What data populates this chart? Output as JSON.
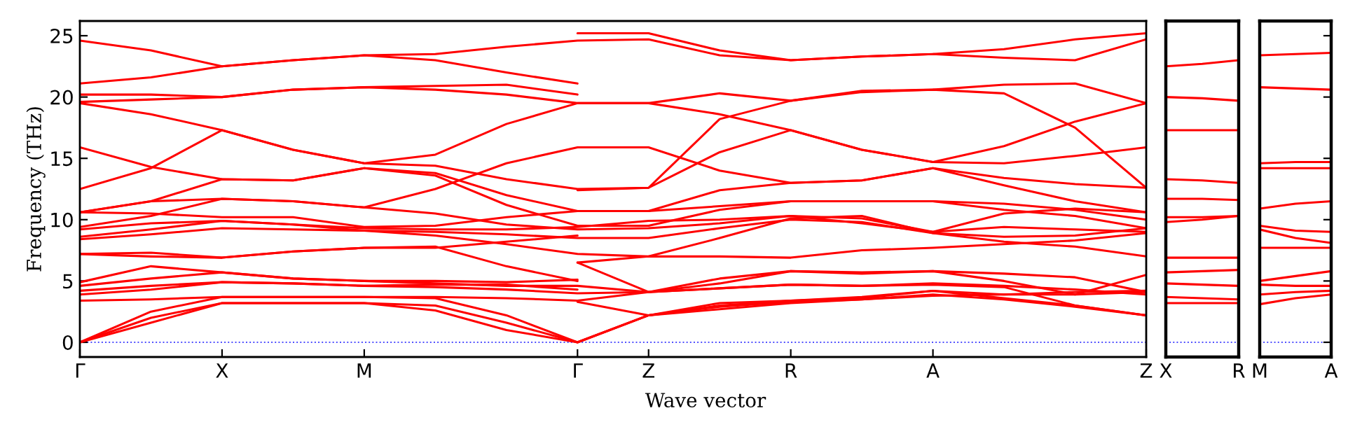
{
  "chart_data": [
    {
      "type": "line",
      "ylabel": "Frequency (THz)",
      "xlabel": "Wave vector",
      "ylim": [
        -1.2,
        26.2
      ],
      "yticks": [
        0,
        5,
        10,
        15,
        20,
        25
      ],
      "categories": [
        "Γ",
        null,
        "X",
        null,
        "M",
        null,
        null,
        "Γ",
        "Z",
        null,
        "R",
        null,
        "A",
        null,
        null,
        "Z"
      ],
      "grid": false,
      "legend": false,
      "line_style": "solid",
      "marker": "none",
      "ref_lines": [
        {
          "axis": "y",
          "value": 0,
          "color": "#0000ff",
          "line_style": "dotted"
        }
      ],
      "series": [
        {
          "color": "#ff0000",
          "values": [
            24.6,
            23.8,
            22.5,
            23.0,
            23.4,
            23.5,
            24.1,
            24.6,
            24.7,
            23.4,
            23.0,
            23.3,
            23.5,
            23.2,
            23.0,
            24.7
          ]
        },
        {
          "color": "#ff0000",
          "values": [
            21.1,
            21.6,
            22.5,
            23.0,
            23.4,
            23.0,
            22.0,
            21.1,
            null,
            null,
            null,
            null,
            null,
            null,
            null,
            null
          ]
        },
        {
          "color": "#ff0000",
          "values": [
            20.2,
            20.2,
            20.0,
            20.6,
            20.8,
            20.6,
            20.2,
            19.5,
            19.5,
            20.3,
            19.7,
            20.5,
            20.6,
            21.0,
            21.1,
            19.5
          ]
        },
        {
          "color": "#ff0000",
          "values": [
            19.6,
            19.8,
            20.0,
            20.6,
            20.8,
            20.9,
            21.0,
            20.2,
            null,
            null,
            null,
            null,
            null,
            null,
            null,
            null
          ]
        },
        {
          "color": "#ff0000",
          "values": [
            19.5,
            18.6,
            17.3,
            15.7,
            14.6,
            15.3,
            17.8,
            19.5,
            19.5,
            18.6,
            17.3,
            15.7,
            14.7,
            16.0,
            18.0,
            19.5
          ]
        },
        {
          "color": "#ff0000",
          "values": [
            12.5,
            14.2,
            17.3,
            15.7,
            14.6,
            14.4,
            13.3,
            12.5,
            12.6,
            18.2,
            19.7,
            20.4,
            20.6,
            20.3,
            17.5,
            12.6
          ]
        },
        {
          "color": "#ff0000",
          "values": [
            15.9,
            14.3,
            13.3,
            13.2,
            14.2,
            13.6,
            11.2,
            9.5,
            9.5,
            10.8,
            11.5,
            11.5,
            11.5,
            10.8,
            10.3,
            9.3
          ]
        },
        {
          "color": "#ff0000",
          "values": [
            10.6,
            11.5,
            13.3,
            13.2,
            14.2,
            13.8,
            12.0,
            10.7,
            10.7,
            12.4,
            13.0,
            13.2,
            14.2,
            12.8,
            11.5,
            10.6
          ]
        },
        {
          "color": "#ff0000",
          "values": [
            10.6,
            11.5,
            11.7,
            11.5,
            11.0,
            12.5,
            14.6,
            15.9,
            15.9,
            14.0,
            13.0,
            13.2,
            14.2,
            13.4,
            12.9,
            12.6
          ]
        },
        {
          "color": "#ff0000",
          "values": [
            9.4,
            10.3,
            11.7,
            11.5,
            11.0,
            10.5,
            9.6,
            9.2,
            9.3,
            9.7,
            10.3,
            10.1,
            9.0,
            9.4,
            9.2,
            9.0
          ]
        },
        {
          "color": "#ff0000",
          "values": [
            10.6,
            10.5,
            10.2,
            10.2,
            9.4,
            9.5,
            10.2,
            10.7,
            10.7,
            11.1,
            11.5,
            11.5,
            11.5,
            11.3,
            10.8,
            10.0
          ]
        },
        {
          "color": "#ff0000",
          "values": [
            9.2,
            9.7,
            9.9,
            9.6,
            9.3,
            9.2,
            9.2,
            9.4,
            9.9,
            10.0,
            10.3,
            9.7,
            9.0,
            10.5,
            10.9,
            10.6
          ]
        },
        {
          "color": "#ff0000",
          "values": [
            8.6,
            9.2,
            9.9,
            9.6,
            9.1,
            9.0,
            8.8,
            8.5,
            8.5,
            9.3,
            10.0,
            9.8,
            8.9,
            8.6,
            8.7,
            9.3
          ]
        },
        {
          "color": "#ff0000",
          "values": [
            8.4,
            8.8,
            9.3,
            9.2,
            9.1,
            8.7,
            8.0,
            7.2,
            7.0,
            7.0,
            6.9,
            7.5,
            7.7,
            8.0,
            8.3,
            8.9
          ]
        },
        {
          "color": "#ff0000",
          "values": [
            7.2,
            7.3,
            6.9,
            7.4,
            7.7,
            7.7,
            8.2,
            8.7,
            null,
            null,
            null,
            null,
            null,
            null,
            null,
            null
          ]
        },
        {
          "color": "#ff0000",
          "values": [
            7.2,
            7.0,
            6.9,
            7.4,
            7.7,
            7.8,
            6.2,
            5.0,
            null,
            null,
            null,
            null,
            null,
            null,
            null,
            null
          ]
        },
        {
          "color": "#ff0000",
          "values": [
            4.9,
            6.2,
            5.7,
            5.2,
            5.0,
            5.0,
            4.9,
            5.1,
            null,
            null,
            null,
            null,
            null,
            null,
            null,
            null
          ]
        },
        {
          "color": "#ff0000",
          "values": [
            4.6,
            5.2,
            5.7,
            5.2,
            5.0,
            4.8,
            4.6,
            4.6,
            4.1,
            4.8,
            5.8,
            5.7,
            5.8,
            5.0,
            3.9,
            4.1
          ]
        },
        {
          "color": "#ff0000",
          "values": [
            4.2,
            4.6,
            4.9,
            4.8,
            4.6,
            4.7,
            4.7,
            4.3,
            null,
            null,
            null,
            null,
            null,
            null,
            null,
            null
          ]
        },
        {
          "color": "#ff0000",
          "values": [
            3.9,
            4.3,
            4.9,
            4.8,
            4.6,
            4.5,
            4.3,
            4.0,
            4.1,
            4.4,
            4.7,
            4.6,
            4.7,
            4.5,
            3.0,
            2.2
          ]
        },
        {
          "color": "#ff0000",
          "values": [
            3.4,
            3.5,
            3.7,
            3.7,
            3.7,
            3.7,
            3.6,
            3.4,
            4.1,
            4.4,
            4.7,
            4.6,
            4.8,
            4.6,
            4.3,
            3.9
          ]
        },
        {
          "color": "#ff0000",
          "values": [
            0,
            2.5,
            3.7,
            3.7,
            3.7,
            3.6,
            2.2,
            0,
            2.2,
            3.0,
            3.4,
            3.6,
            4.2,
            3.6,
            3.0,
            2.2
          ]
        },
        {
          "color": "#ff0000",
          "values": [
            0,
            2.0,
            3.2,
            3.2,
            3.2,
            3.0,
            1.6,
            0,
            2.2,
            3.2,
            3.4,
            3.7,
            4.2,
            3.9,
            3.9,
            5.5
          ]
        },
        {
          "color": "#ff0000",
          "values": [
            0,
            1.6,
            3.2,
            3.2,
            3.2,
            2.6,
            1.0,
            0,
            2.2,
            2.7,
            3.2,
            3.5,
            3.8,
            3.9,
            4.1,
            4.2
          ]
        },
        {
          "color": "#ff0000",
          "values": [
            null,
            null,
            null,
            null,
            null,
            null,
            null,
            25.2,
            25.2,
            23.8,
            23.0,
            23.3,
            23.5,
            23.9,
            24.7,
            25.2
          ]
        },
        {
          "color": "#ff0000",
          "values": [
            null,
            null,
            null,
            null,
            null,
            null,
            null,
            12.4,
            12.6,
            15.5,
            17.3,
            15.7,
            14.7,
            14.6,
            15.2,
            15.9
          ]
        },
        {
          "color": "#ff0000",
          "values": [
            null,
            null,
            null,
            null,
            null,
            null,
            null,
            6.5,
            7.0,
            8.5,
            10.1,
            10.3,
            8.9,
            8.2,
            7.8,
            7.0
          ]
        },
        {
          "color": "#ff0000",
          "values": [
            null,
            null,
            null,
            null,
            null,
            null,
            null,
            6.5,
            4.1,
            5.2,
            5.8,
            5.6,
            5.8,
            5.6,
            5.3,
            4.1
          ]
        },
        {
          "color": "#ff0000",
          "values": [
            null,
            null,
            null,
            null,
            null,
            null,
            null,
            3.3,
            2.2,
            2.9,
            3.3,
            3.5,
            3.9,
            3.5,
            2.9,
            2.2
          ]
        }
      ]
    },
    {
      "type": "line",
      "ylim": [
        -1.2,
        26.2
      ],
      "categories": [
        "X",
        null,
        "R"
      ],
      "tick_labels": "x",
      "grid": false,
      "legend": false,
      "line_style": "solid",
      "marker": "none",
      "ref_lines": [
        {
          "axis": "y",
          "value": 0,
          "color": "#0000ff",
          "line_style": "dotted"
        }
      ],
      "series": [
        {
          "color": "#ff0000",
          "values": [
            22.5,
            22.7,
            23.0
          ]
        },
        {
          "color": "#ff0000",
          "values": [
            20.0,
            19.9,
            19.7
          ]
        },
        {
          "color": "#ff0000",
          "values": [
            17.3,
            17.3,
            17.3
          ]
        },
        {
          "color": "#ff0000",
          "values": [
            13.3,
            13.2,
            13.0
          ]
        },
        {
          "color": "#ff0000",
          "values": [
            11.7,
            11.7,
            11.6
          ]
        },
        {
          "color": "#ff0000",
          "values": [
            10.2,
            10.2,
            10.3
          ]
        },
        {
          "color": "#ff0000",
          "values": [
            9.8,
            10.0,
            10.3
          ]
        },
        {
          "color": "#ff0000",
          "values": [
            6.9,
            6.9,
            6.9
          ]
        },
        {
          "color": "#ff0000",
          "values": [
            5.7,
            5.8,
            5.9
          ]
        },
        {
          "color": "#ff0000",
          "values": [
            4.8,
            4.7,
            4.6
          ]
        },
        {
          "color": "#ff0000",
          "values": [
            3.7,
            3.6,
            3.5
          ]
        },
        {
          "color": "#ff0000",
          "values": [
            3.2,
            3.2,
            3.2
          ]
        }
      ]
    },
    {
      "type": "line",
      "ylim": [
        -1.2,
        26.2
      ],
      "categories": [
        "M",
        null,
        "A"
      ],
      "tick_labels": "x",
      "yticks": [
        {
          "value": 0,
          "label": null
        },
        {
          "value": 5,
          "label": null
        },
        {
          "value": 10,
          "label": null
        },
        {
          "value": 15,
          "label": null
        },
        {
          "value": 20,
          "label": null
        },
        {
          "value": 25,
          "label": null
        }
      ],
      "grid": false,
      "legend": false,
      "line_style": "solid",
      "marker": "none",
      "ref_lines": [
        {
          "axis": "y",
          "value": 0,
          "color": "#0000ff",
          "line_style": "dotted"
        }
      ],
      "series": [
        {
          "color": "#ff0000",
          "values": [
            23.4,
            23.5,
            23.6
          ]
        },
        {
          "color": "#ff0000",
          "values": [
            20.8,
            20.7,
            20.6
          ]
        },
        {
          "color": "#ff0000",
          "values": [
            14.6,
            14.7,
            14.7
          ]
        },
        {
          "color": "#ff0000",
          "values": [
            14.2,
            14.2,
            14.2
          ]
        },
        {
          "color": "#ff0000",
          "values": [
            10.9,
            11.3,
            11.5
          ]
        },
        {
          "color": "#ff0000",
          "values": [
            9.5,
            9.1,
            9.0
          ]
        },
        {
          "color": "#ff0000",
          "values": [
            9.2,
            8.5,
            8.1
          ]
        },
        {
          "color": "#ff0000",
          "values": [
            7.7,
            7.7,
            7.7
          ]
        },
        {
          "color": "#ff0000",
          "values": [
            5.0,
            5.4,
            5.8
          ]
        },
        {
          "color": "#ff0000",
          "values": [
            4.7,
            4.6,
            4.6
          ]
        },
        {
          "color": "#ff0000",
          "values": [
            3.9,
            4.1,
            4.2
          ]
        },
        {
          "color": "#ff0000",
          "values": [
            3.1,
            3.6,
            3.9
          ]
        }
      ]
    }
  ]
}
